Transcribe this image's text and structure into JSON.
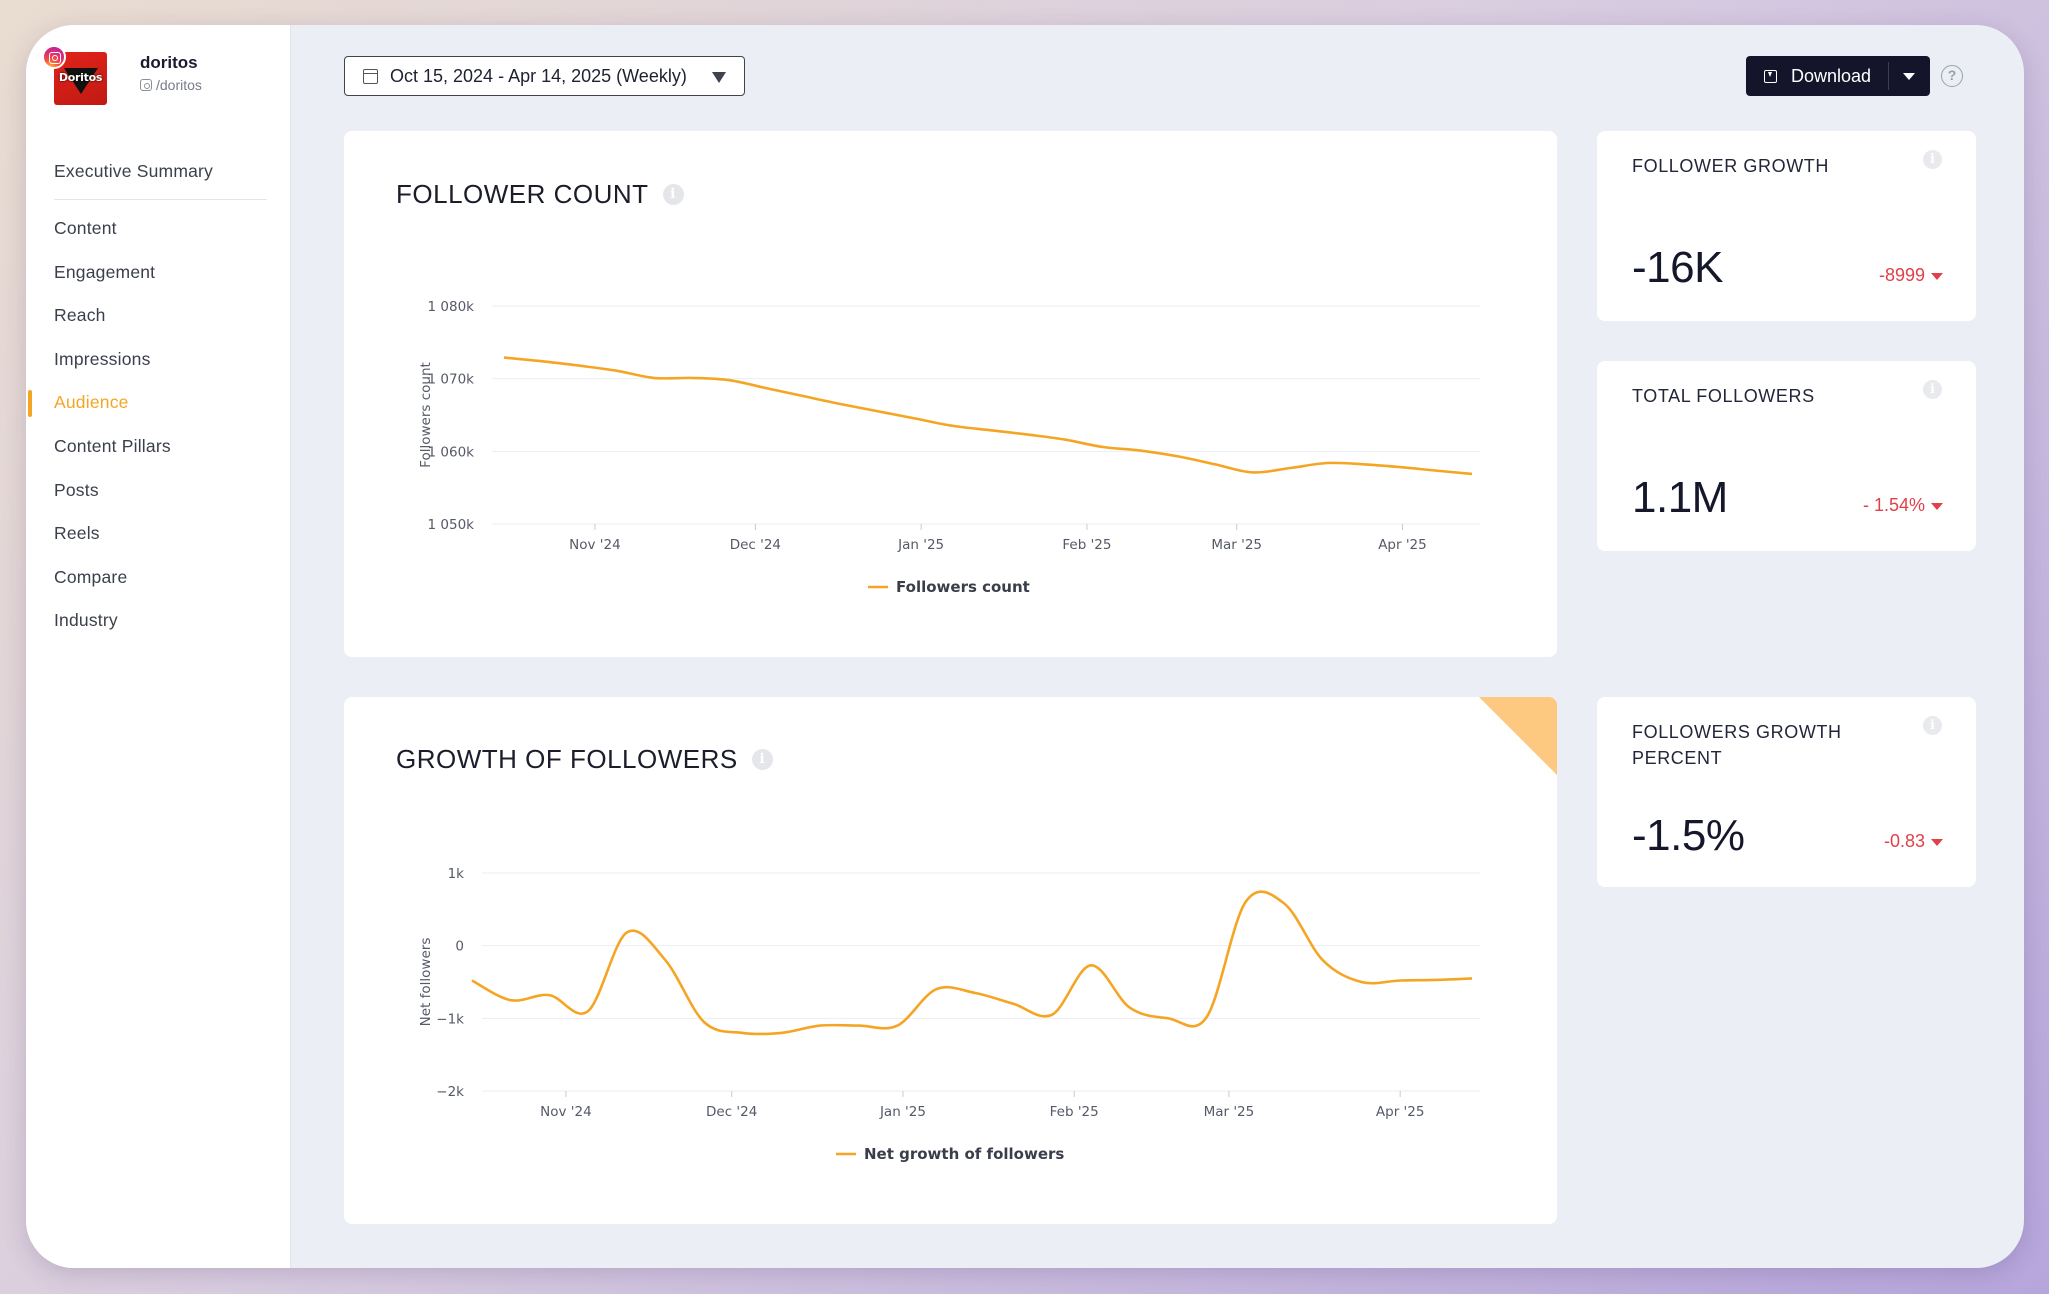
{
  "profile": {
    "name": "doritos",
    "handle": "/doritos",
    "logo_text": "Doritos"
  },
  "nav": {
    "items": [
      {
        "label": "Executive Summary",
        "id": "executive-summary"
      },
      {
        "label": "Content",
        "id": "content"
      },
      {
        "label": "Engagement",
        "id": "engagement"
      },
      {
        "label": "Reach",
        "id": "reach"
      },
      {
        "label": "Impressions",
        "id": "impressions"
      },
      {
        "label": "Audience",
        "id": "audience",
        "active": true
      },
      {
        "label": "Content Pillars",
        "id": "content-pillars"
      },
      {
        "label": "Posts",
        "id": "posts"
      },
      {
        "label": "Reels",
        "id": "reels"
      },
      {
        "label": "Compare",
        "id": "compare"
      },
      {
        "label": "Industry",
        "id": "industry"
      }
    ]
  },
  "toolbar": {
    "date_range": "Oct 15, 2024 - Apr 14, 2025 (Weekly)",
    "download_label": "Download",
    "help_label": "?"
  },
  "follower_count": {
    "title": "FOLLOWER COUNT",
    "info": "i"
  },
  "growth_of_followers": {
    "title": "GROWTH OF FOLLOWERS",
    "info": "i"
  },
  "metrics": {
    "follower_growth": {
      "title": "FOLLOWER GROWTH",
      "value": "-16K",
      "delta": "-8999"
    },
    "total_followers": {
      "title": "TOTAL FOLLOWERS",
      "value": "1.1M",
      "delta": "- 1.54%"
    },
    "followers_growth_percent": {
      "title": "FOLLOWERS GROWTH PERCENT",
      "value": "-1.5%",
      "delta": "-0.83"
    }
  },
  "colors": {
    "accent": "#f5a524",
    "negative": "#e0404a",
    "button_dark": "#14152b"
  },
  "chart_data": [
    {
      "type": "line",
      "ylabel": "Followers count",
      "xlabel": "",
      "x_ticks": [
        "Nov '24",
        "Dec '24",
        "Jan '25",
        "Feb '25",
        "Mar '25",
        "Apr '25"
      ],
      "y_ticks": [
        "1 050k",
        "1 060k",
        "1 070k",
        "1 080k"
      ],
      "ylim": [
        1050000,
        1080000
      ],
      "grid": true,
      "legend": "bottom",
      "series": [
        {
          "name": "Followers count",
          "x": [
            "2024-10-15",
            "2024-10-22",
            "2024-10-29",
            "2024-11-05",
            "2024-11-12",
            "2024-11-19",
            "2024-11-26",
            "2024-12-03",
            "2024-12-10",
            "2024-12-17",
            "2024-12-24",
            "2024-12-31",
            "2025-01-07",
            "2025-01-14",
            "2025-01-21",
            "2025-01-28",
            "2025-02-04",
            "2025-02-11",
            "2025-02-18",
            "2025-02-25",
            "2025-03-04",
            "2025-03-11",
            "2025-03-18",
            "2025-03-25",
            "2025-04-01",
            "2025-04-08",
            "2025-04-14"
          ],
          "values": [
            1072900,
            1072400,
            1071800,
            1071100,
            1070100,
            1070100,
            1069800,
            1068700,
            1067600,
            1066500,
            1065500,
            1064500,
            1063500,
            1062900,
            1062300,
            1061600,
            1060600,
            1060100,
            1059300,
            1058200,
            1057100,
            1057700,
            1058400,
            1058200,
            1057800,
            1057300,
            1056900
          ]
        }
      ]
    },
    {
      "type": "line",
      "ylabel": "Net followers",
      "xlabel": "",
      "x_ticks": [
        "Nov '24",
        "Dec '24",
        "Jan '25",
        "Feb '25",
        "Mar '25",
        "Apr '25"
      ],
      "y_ticks": [
        "−2k",
        "−1k",
        "0",
        "1k"
      ],
      "ylim": [
        -2000,
        1000
      ],
      "grid": true,
      "legend": "bottom",
      "series": [
        {
          "name": "Net growth of followers",
          "x": [
            "2024-10-15",
            "2024-10-22",
            "2024-10-29",
            "2024-11-05",
            "2024-11-12",
            "2024-11-19",
            "2024-11-26",
            "2024-12-03",
            "2024-12-10",
            "2024-12-17",
            "2024-12-24",
            "2024-12-31",
            "2025-01-07",
            "2025-01-14",
            "2025-01-21",
            "2025-01-28",
            "2025-02-04",
            "2025-02-11",
            "2025-02-18",
            "2025-02-25",
            "2025-03-04",
            "2025-03-11",
            "2025-03-18",
            "2025-03-25",
            "2025-04-01",
            "2025-04-08",
            "2025-04-14"
          ],
          "values": [
            -480,
            -750,
            -680,
            -900,
            180,
            -200,
            -1050,
            -1200,
            -1200,
            -1100,
            -1100,
            -1100,
            -600,
            -650,
            -800,
            -950,
            -270,
            -850,
            -1000,
            -980,
            600,
            580,
            -200,
            -500,
            -480,
            -470,
            -450
          ]
        }
      ]
    }
  ]
}
